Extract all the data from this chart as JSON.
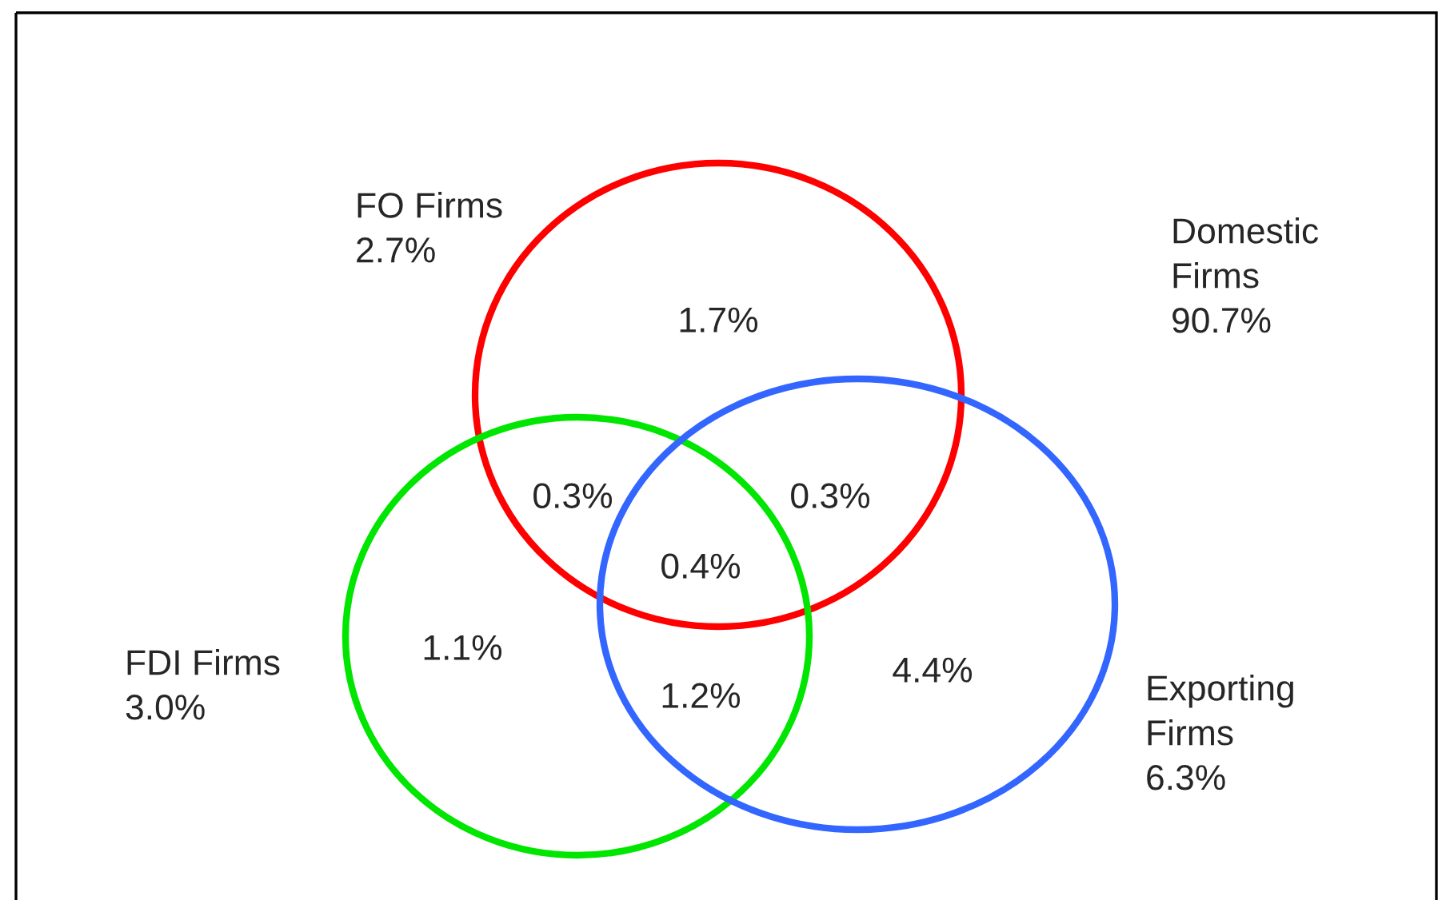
{
  "chart_data": {
    "type": "other",
    "categories": [
      "FO Firms",
      "Domestic Firms",
      "FDI Firms",
      "Exporting Firms"
    ],
    "values": [
      2.7,
      90.7,
      3.0,
      6.3
    ],
    "value_labels": [
      "2.7%",
      "90.7%",
      "3.0%",
      "6.3%"
    ],
    "colors": [
      "#ff0000",
      null,
      "#00e600",
      "#3366ff"
    ],
    "annotations": [
      "1.7%",
      "0.3%",
      "0.3%",
      "0.4%",
      "1.1%",
      "1.2%",
      "4.4%"
    ]
  }
}
